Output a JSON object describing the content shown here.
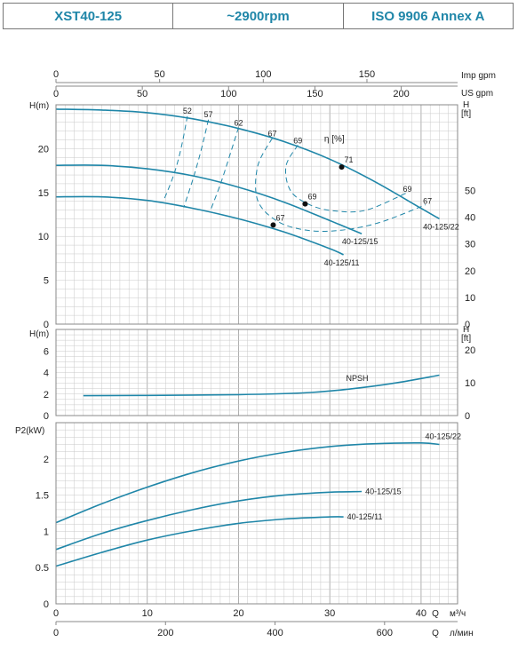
{
  "header": {
    "model": "XST40-125",
    "speed": "~2900rpm",
    "standard": "ISO 9906   Annex A"
  },
  "colors": {
    "curve": "#1f86a8",
    "grid": "#c9c9c9",
    "frame": "#888888"
  },
  "top_axes": {
    "imp_label": "Imp gpm",
    "imp_ticks": [
      "0",
      "50",
      "100",
      "150"
    ],
    "us_label": "US gpm",
    "us_ticks": [
      "0",
      "50",
      "100",
      "150",
      "200"
    ]
  },
  "bottom_axes": {
    "q_label": "Q",
    "m3_unit": "м³/ч",
    "m3_ticks": [
      "0",
      "10",
      "20",
      "30",
      "40"
    ],
    "l_unit": "л/мин",
    "l_ticks": [
      "0",
      "200",
      "400",
      "600"
    ]
  },
  "chart_data": [
    {
      "type": "line",
      "ylabel": "H(m)",
      "ylabel_right": "H [ft]",
      "ylim": [
        0,
        25
      ],
      "yticks": [
        "0",
        "5",
        "10",
        "15",
        "20"
      ],
      "yticks_right": [
        "0",
        "10",
        "20",
        "30",
        "40",
        "50"
      ],
      "efficiency_label": "η [%]",
      "series": [
        {
          "name": "40-125/22",
          "x": [
            0,
            5,
            10,
            15,
            20,
            25,
            30,
            35,
            40,
            42
          ],
          "y": [
            24.5,
            24.4,
            24.1,
            23.4,
            22.3,
            20.8,
            18.8,
            16.2,
            13.2,
            12.0
          ]
        },
        {
          "name": "40-125/15",
          "x": [
            0,
            5,
            10,
            15,
            20,
            25,
            30,
            33.5
          ],
          "y": [
            18.1,
            18.1,
            17.7,
            16.9,
            15.6,
            13.9,
            11.8,
            10.3
          ]
        },
        {
          "name": "40-125/11",
          "x": [
            0,
            5,
            10,
            15,
            20,
            25,
            30,
            31.5
          ],
          "y": [
            14.5,
            14.5,
            14.1,
            13.2,
            12.0,
            10.5,
            8.6,
            7.9
          ]
        }
      ],
      "bep_points": [
        {
          "x": 31.3,
          "y": 17.9,
          "label": "71"
        },
        {
          "x": 27.3,
          "y": 13.7,
          "label": "69"
        },
        {
          "x": 23.8,
          "y": 11.3,
          "label": "67"
        }
      ],
      "efficiency_labels": [
        {
          "label": "52",
          "x": 14.4,
          "y": 24.0
        },
        {
          "label": "57",
          "x": 16.7,
          "y": 23.6
        },
        {
          "label": "62",
          "x": 20.0,
          "y": 22.6
        },
        {
          "label": "67",
          "x": 23.7,
          "y": 21.4
        },
        {
          "label": "69",
          "x": 26.5,
          "y": 20.6
        },
        {
          "label": "69",
          "x": 38.5,
          "y": 15.1
        },
        {
          "label": "67",
          "x": 40.7,
          "y": 13.7
        }
      ],
      "efficiency_contours": [
        {
          "x": [
            14.4,
            13.7,
            12.9,
            11.8
          ],
          "y": [
            23.7,
            20.0,
            17.0,
            14.1
          ]
        },
        {
          "x": [
            16.7,
            15.9,
            15.0,
            14.0
          ],
          "y": [
            23.3,
            19.8,
            16.5,
            13.3
          ]
        },
        {
          "x": [
            20.0,
            19.0,
            18.0,
            16.9
          ],
          "y": [
            22.4,
            19.1,
            15.9,
            12.9
          ]
        },
        {
          "x": [
            23.7,
            22.1,
            22.1,
            24.3,
            27.5,
            31.2,
            35.5,
            40.5
          ],
          "y": [
            21.2,
            18.0,
            14.1,
            11.7,
            10.7,
            10.7,
            11.6,
            13.6
          ]
        },
        {
          "x": [
            26.5,
            25.2,
            25.7,
            27.8,
            30.5,
            34.0,
            38.5
          ],
          "y": [
            20.4,
            18.0,
            15.2,
            13.6,
            12.9,
            13.0,
            15.0
          ]
        }
      ]
    },
    {
      "type": "line",
      "ylabel": "H(m)",
      "ylabel_right": "H [ft]",
      "ylim": [
        0,
        8
      ],
      "yticks": [
        "0",
        "2",
        "4",
        "6"
      ],
      "yticks_right": [
        "0",
        "10",
        "20"
      ],
      "series": [
        {
          "name": "NPSH",
          "x": [
            3,
            10,
            20,
            27,
            32,
            37,
            42
          ],
          "y": [
            1.85,
            1.87,
            1.95,
            2.1,
            2.45,
            3.0,
            3.75
          ]
        }
      ]
    },
    {
      "type": "line",
      "ylabel": "P2(kW)",
      "ylim": [
        0,
        2.5
      ],
      "yticks": [
        "0",
        "0.5",
        "1",
        "1.5",
        "2"
      ],
      "series": [
        {
          "name": "40-125/22",
          "x": [
            0,
            5,
            10,
            15,
            20,
            25,
            30,
            35,
            40,
            42
          ],
          "y": [
            1.12,
            1.38,
            1.61,
            1.81,
            1.97,
            2.09,
            2.17,
            2.21,
            2.22,
            2.2
          ]
        },
        {
          "name": "40-125/15",
          "x": [
            0,
            5,
            10,
            15,
            20,
            25,
            30,
            33.5
          ],
          "y": [
            0.75,
            0.97,
            1.15,
            1.3,
            1.42,
            1.5,
            1.54,
            1.55
          ]
        },
        {
          "name": "40-125/11",
          "x": [
            0,
            5,
            10,
            15,
            20,
            25,
            30,
            31.5
          ],
          "y": [
            0.52,
            0.71,
            0.88,
            1.01,
            1.11,
            1.17,
            1.2,
            1.2
          ]
        }
      ]
    }
  ]
}
